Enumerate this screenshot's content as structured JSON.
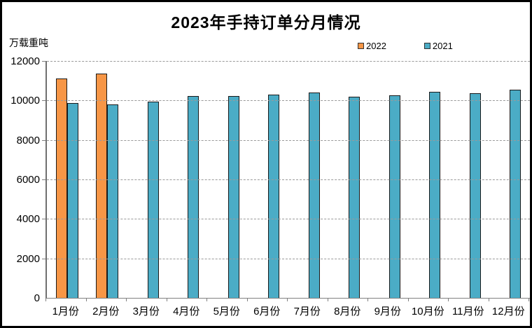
{
  "title": "2023年手持订单分月情况",
  "y_axis_label": "万载重吨",
  "chart_data": {
    "type": "bar",
    "title": "2023年手持订单分月情况",
    "ylabel": "万载重吨",
    "xlabel": "",
    "categories": [
      "1月份",
      "2月份",
      "3月份",
      "4月份",
      "5月份",
      "6月份",
      "7月份",
      "8月份",
      "9月份",
      "10月份",
      "11月份",
      "12月份"
    ],
    "series": [
      {
        "name": "2022",
        "color": "#F79646",
        "values": [
          11120,
          11360,
          null,
          null,
          null,
          null,
          null,
          null,
          null,
          null,
          null,
          null
        ]
      },
      {
        "name": "2021",
        "color": "#4BACC6",
        "values": [
          9860,
          9800,
          9940,
          10240,
          10210,
          10310,
          10400,
          10200,
          10260,
          10440,
          10380,
          10530
        ]
      }
    ],
    "ylim": [
      0,
      12000
    ],
    "yticks": [
      0,
      2000,
      4000,
      6000,
      8000,
      10000,
      12000
    ],
    "grid": "horizontal-dashed",
    "legend_position": "top-right",
    "bar_border_color": "#1a1a1a"
  },
  "colors": {
    "background": "#FFFFFF",
    "frame": "#000000",
    "axis": "#808080",
    "gridline": "#9A9A9A",
    "series_2022": "#F79646",
    "series_2021": "#4BACC6"
  }
}
